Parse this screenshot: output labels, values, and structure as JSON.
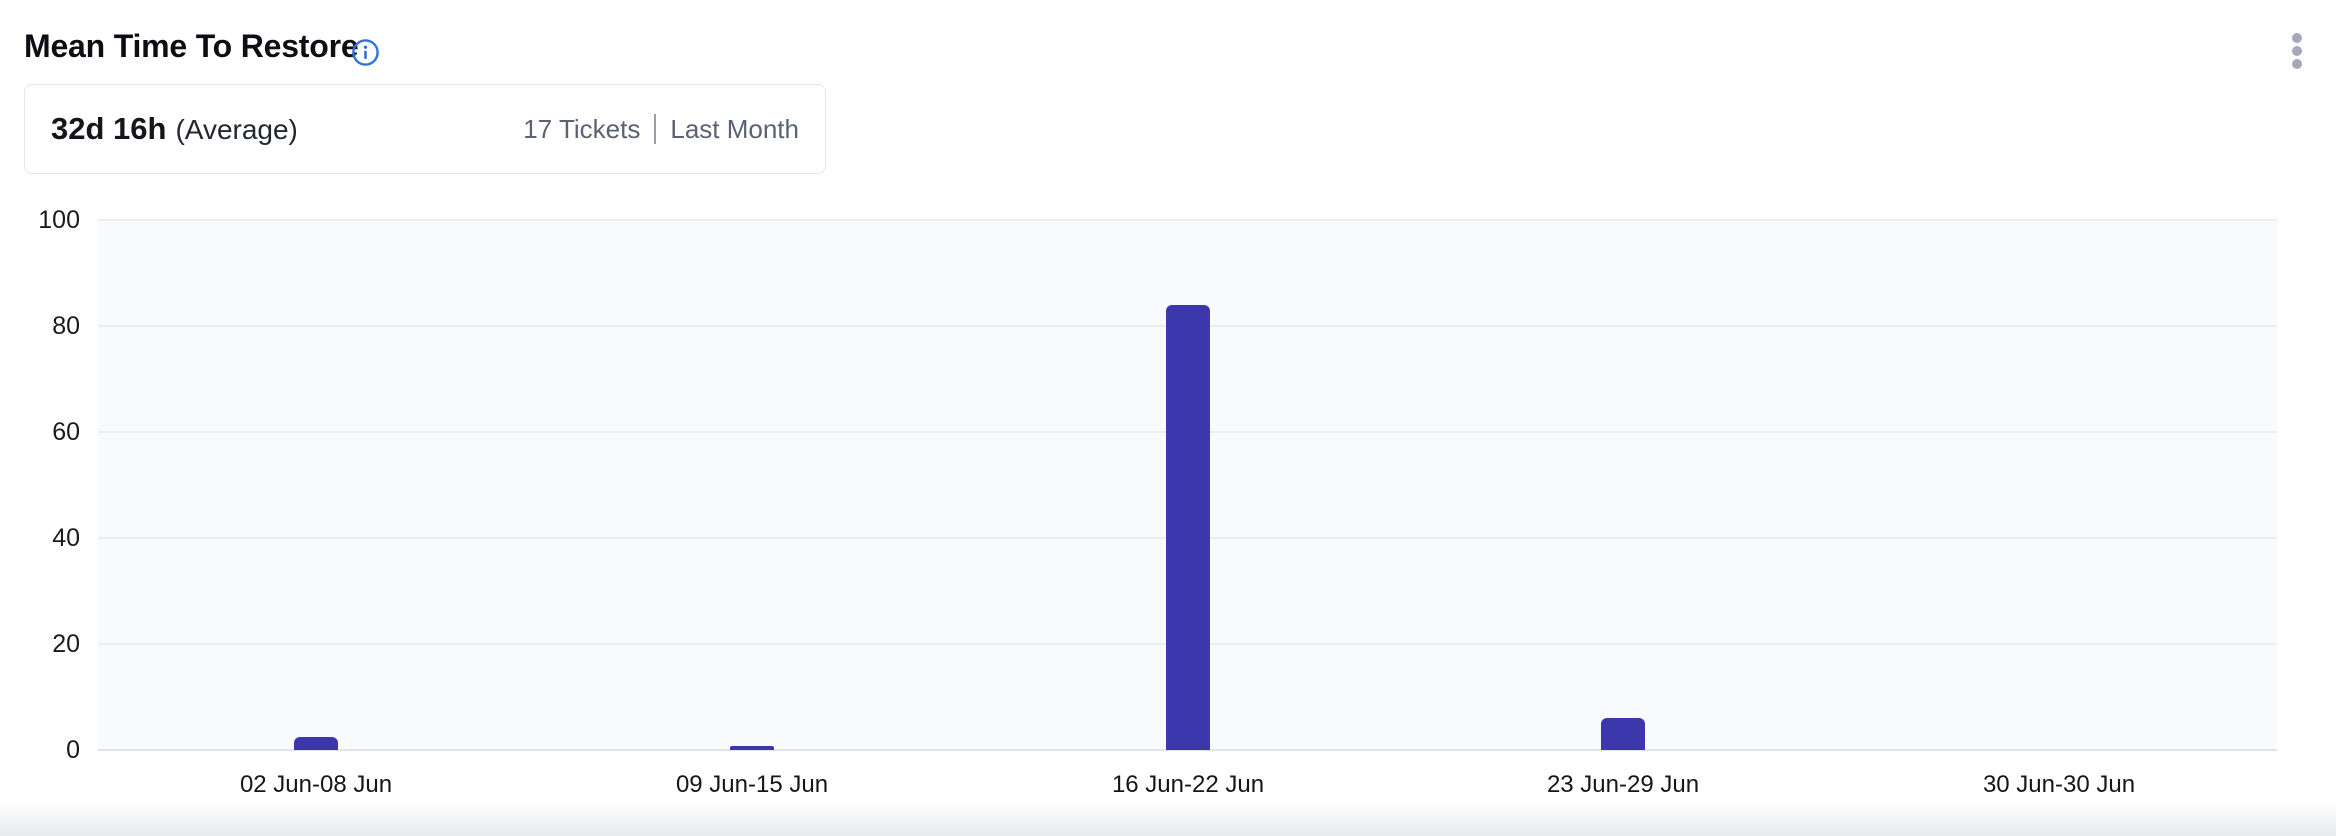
{
  "header": {
    "title": "Mean Time To Restore",
    "info_icon": "info-icon",
    "menu_icon": "kebab-menu-icon"
  },
  "summary": {
    "value": "32d 16h",
    "value_suffix": "(Average)",
    "tickets": "17 Tickets",
    "period": "Last Month"
  },
  "chart_data": {
    "type": "bar",
    "categories": [
      "02 Jun-08 Jun",
      "09 Jun-15 Jun",
      "16 Jun-22 Jun",
      "23 Jun-29 Jun",
      "30 Jun-30 Jun"
    ],
    "values": [
      2.4,
      0.7,
      84,
      6,
      0
    ],
    "title": "Mean Time To Restore",
    "xlabel": "",
    "ylabel": "",
    "ylim": [
      0,
      100
    ],
    "yticks": [
      0,
      20,
      40,
      60,
      80,
      100
    ],
    "grid": true,
    "legend": "none",
    "bar_color": "#3c37aa",
    "plot_background": "#f9fafd",
    "gridline_color": "#eceef2"
  },
  "colors": {
    "accent_blue": "#3173dd",
    "bar_indigo": "#3c37aa",
    "muted_text": "#5a6372",
    "kebab_gray": "#a5a8b9"
  }
}
